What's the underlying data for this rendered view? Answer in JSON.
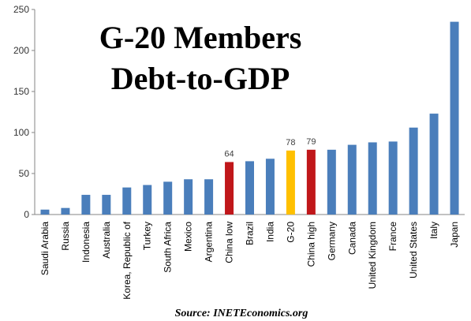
{
  "chart_data": {
    "type": "bar",
    "title_lines": [
      "G-20 Members",
      "Debt-to-GDP"
    ],
    "source": "Source: INETEconomics.org",
    "xlabel": "",
    "ylabel": "",
    "ylim": [
      0,
      250
    ],
    "yticks": [
      0,
      50,
      100,
      150,
      200,
      250
    ],
    "grid": false,
    "legend": "none",
    "categories": [
      "Saudi Arabia",
      "Russia",
      "Indonesia",
      "Australia",
      "Korea, Republic of",
      "Turkey",
      "South Africa",
      "Mexico",
      "Argentina",
      "China low",
      "Brazil",
      "India",
      "G-20",
      "China high",
      "Germany",
      "Canada",
      "United Kingdom",
      "France",
      "United States",
      "Italy",
      "Japan"
    ],
    "values": [
      6,
      8,
      24,
      24,
      33,
      36,
      40,
      43,
      43,
      64,
      65,
      68,
      78,
      79,
      79,
      85,
      88,
      89,
      106,
      123,
      235
    ],
    "colors": [
      "#4a7ebb",
      "#4a7ebb",
      "#4a7ebb",
      "#4a7ebb",
      "#4a7ebb",
      "#4a7ebb",
      "#4a7ebb",
      "#4a7ebb",
      "#4a7ebb",
      "#c0171a",
      "#4a7ebb",
      "#4a7ebb",
      "#ffc000",
      "#c0171a",
      "#4a7ebb",
      "#4a7ebb",
      "#4a7ebb",
      "#4a7ebb",
      "#4a7ebb",
      "#4a7ebb",
      "#4a7ebb"
    ],
    "data_labels": [
      "",
      "",
      "",
      "",
      "",
      "",
      "",
      "",
      "",
      "64",
      "",
      "",
      "78",
      "79",
      "",
      "",
      "",
      "",
      "",
      "",
      ""
    ]
  }
}
